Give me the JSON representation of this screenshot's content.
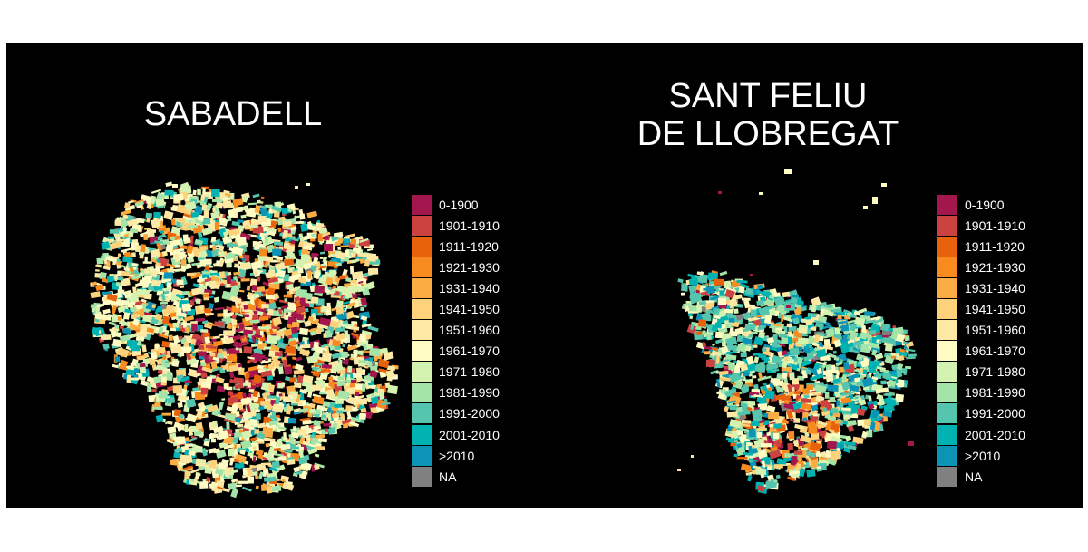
{
  "maps": [
    {
      "id": "sabadell",
      "title_lines": [
        "SABADELL"
      ]
    },
    {
      "id": "sant-feliu",
      "title_lines": [
        "SANT FELIU",
        "DE LLOBREGAT"
      ]
    }
  ],
  "legend": [
    {
      "label": "0-1900",
      "color": "#a3164e"
    },
    {
      "label": "1901-1910",
      "color": "#cc4241"
    },
    {
      "label": "1911-1920",
      "color": "#e8620c"
    },
    {
      "label": "1921-1930",
      "color": "#f78b1f"
    },
    {
      "label": "1931-1940",
      "color": "#fbac43"
    },
    {
      "label": "1941-1950",
      "color": "#fdd27a"
    },
    {
      "label": "1951-1960",
      "color": "#fde9a4"
    },
    {
      "label": "1961-1970",
      "color": "#fefcc2"
    },
    {
      "label": "1971-1980",
      "color": "#d4f2b0"
    },
    {
      "label": "1981-1990",
      "color": "#a4e4a8"
    },
    {
      "label": "1991-2000",
      "color": "#55c6ad"
    },
    {
      "label": "2001-2010",
      "color": "#00b2b2"
    },
    {
      "label": ">2010",
      "color": "#0b94b6"
    },
    {
      "label": "NA",
      "color": "#808080"
    }
  ]
}
